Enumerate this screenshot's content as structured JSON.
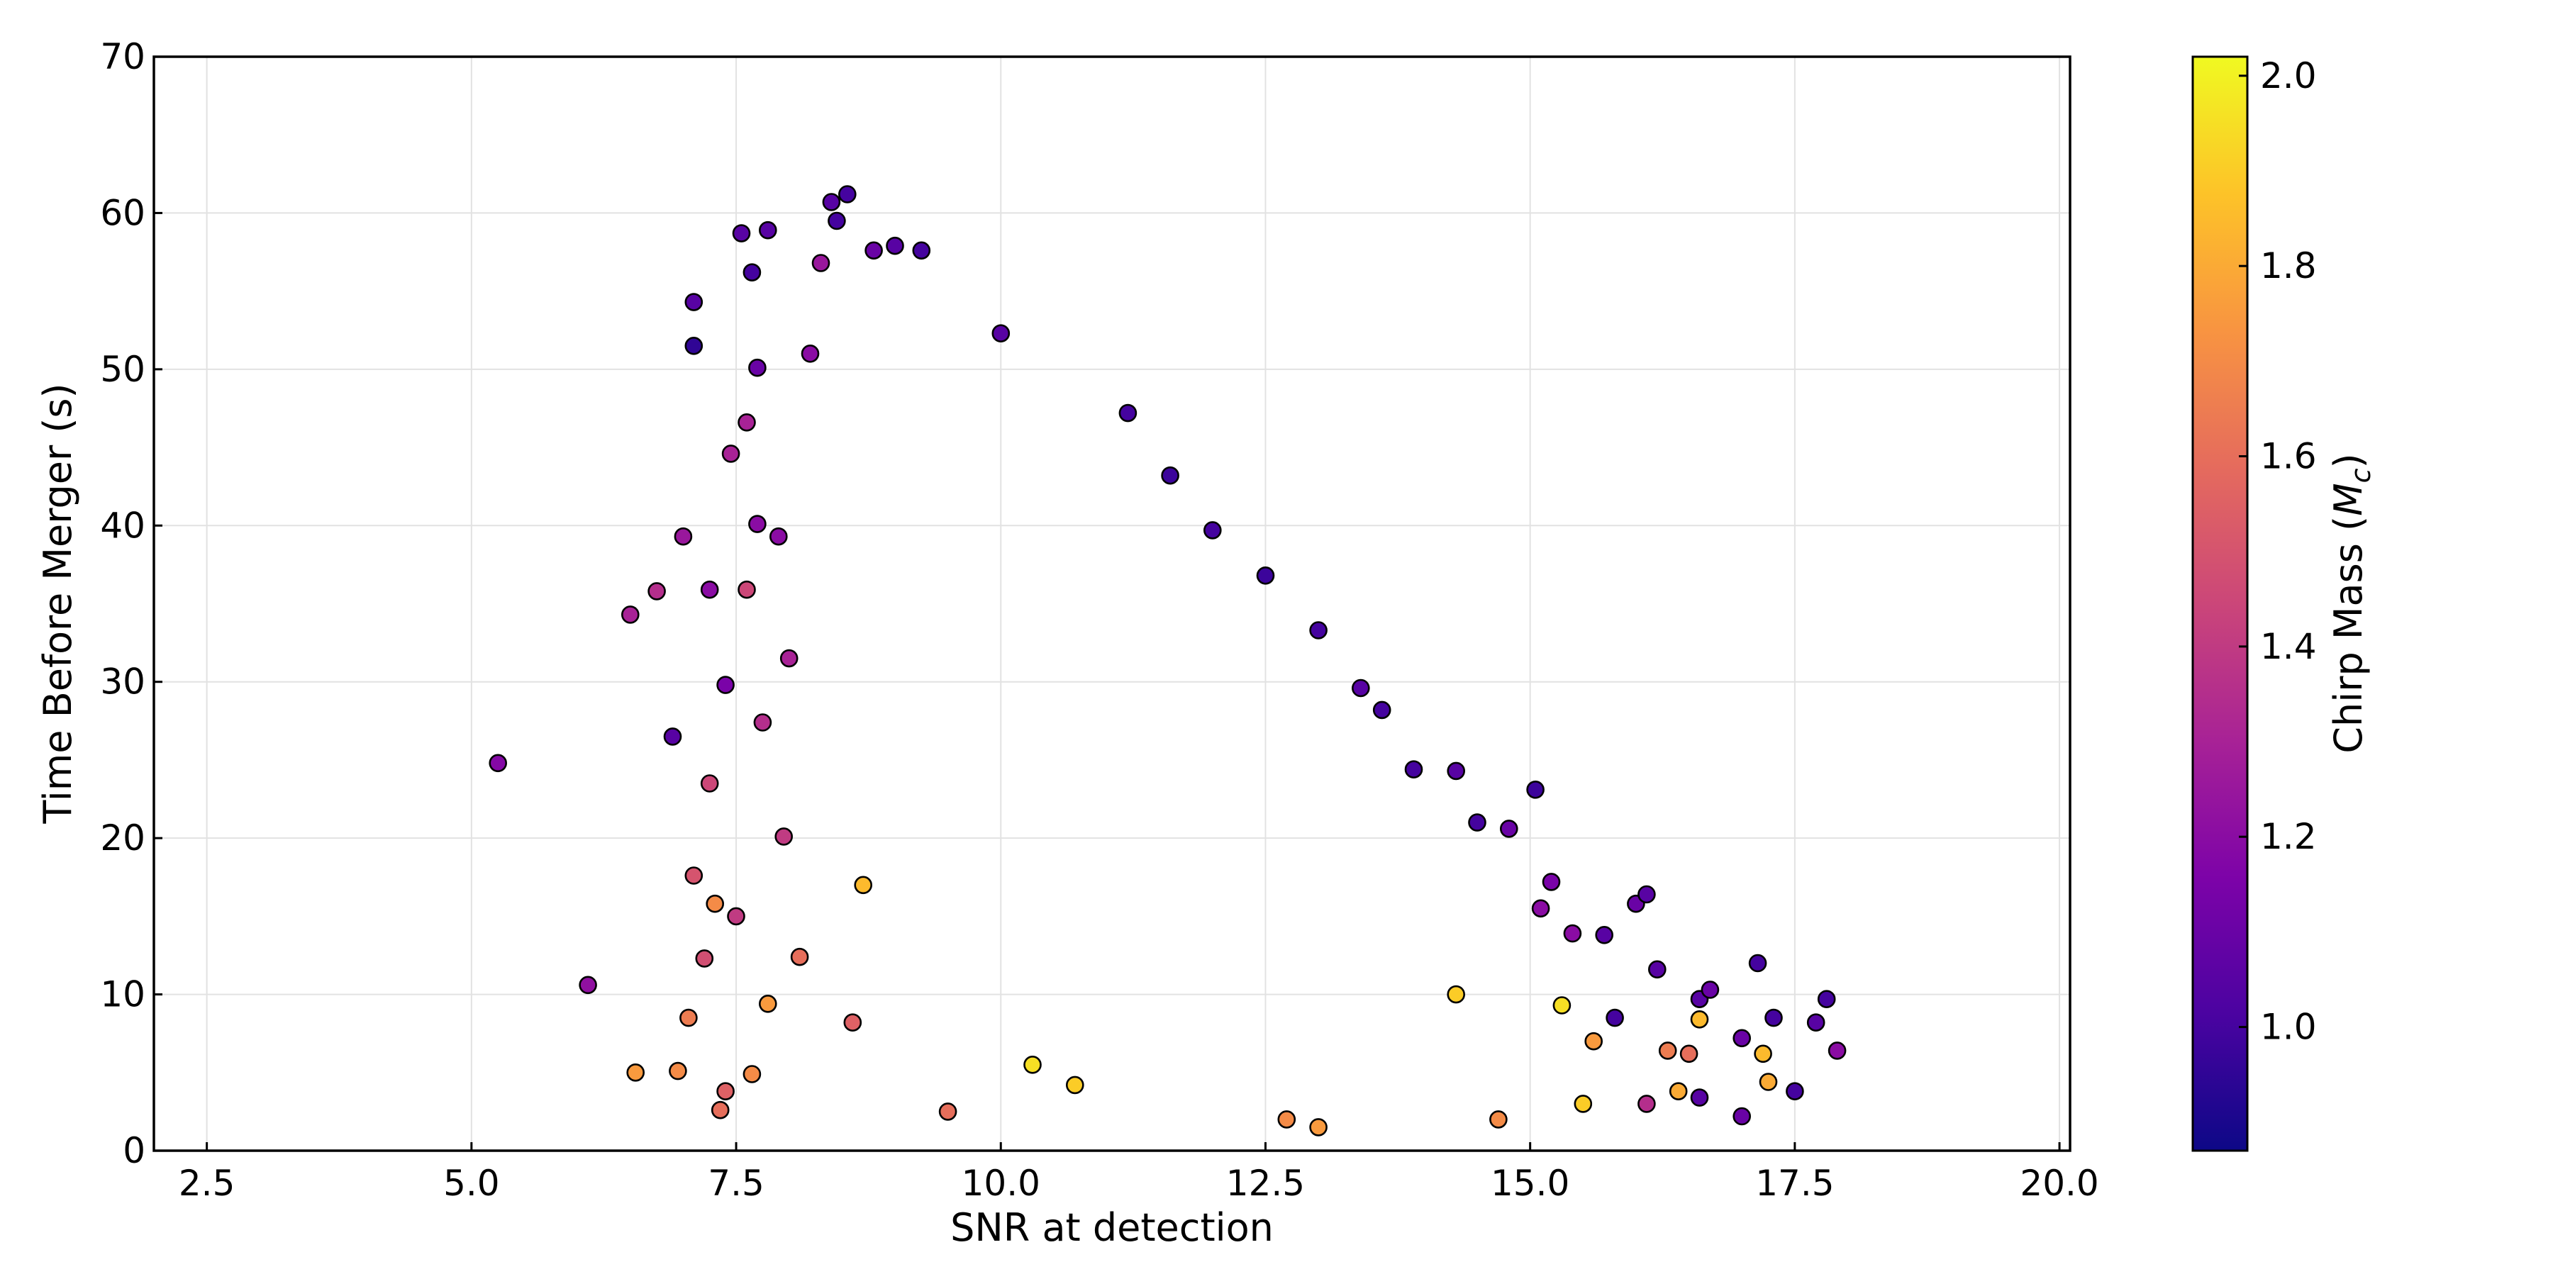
{
  "chart_data": {
    "type": "scatter",
    "title": "",
    "xlabel": "SNR at detection",
    "ylabel": "Time Before Merger (s)",
    "xlim": [
      2.0,
      20.1
    ],
    "ylim": [
      0,
      70
    ],
    "xticks": [
      2.5,
      5.0,
      7.5,
      10.0,
      12.5,
      15.0,
      17.5,
      20.0
    ],
    "xtick_labels": [
      "2.5",
      "5.0",
      "7.5",
      "10.0",
      "12.5",
      "15.0",
      "17.5",
      "20.0"
    ],
    "yticks": [
      0,
      10,
      20,
      30,
      40,
      50,
      60,
      70
    ],
    "ytick_labels": [
      "0",
      "10",
      "20",
      "30",
      "40",
      "50",
      "60",
      "70"
    ],
    "grid": true,
    "colorbar": {
      "label_prefix": "Chirp Mass (",
      "label_symbol": "M",
      "label_subscript": "c",
      "label_suffix": ")",
      "colormap": "plasma",
      "range": [
        0.87,
        2.02
      ],
      "ticks": [
        1.0,
        1.2,
        1.4,
        1.6,
        1.8,
        2.0
      ],
      "tick_labels": [
        "1.0",
        "1.2",
        "1.4",
        "1.6",
        "1.8",
        "2.0"
      ]
    },
    "series": [
      {
        "marker": "circle",
        "edgecolor": "#000000",
        "points": [
          [
            5.25,
            24.8,
            1.18
          ],
          [
            6.1,
            10.6,
            1.22
          ],
          [
            6.5,
            34.3,
            1.3
          ],
          [
            6.55,
            5.0,
            1.75
          ],
          [
            6.75,
            35.8,
            1.35
          ],
          [
            6.9,
            26.5,
            1.05
          ],
          [
            6.95,
            5.1,
            1.7
          ],
          [
            7.0,
            39.3,
            1.25
          ],
          [
            7.05,
            8.5,
            1.65
          ],
          [
            7.1,
            54.3,
            1.05
          ],
          [
            7.1,
            51.5,
            0.95
          ],
          [
            7.1,
            17.6,
            1.5
          ],
          [
            7.2,
            12.3,
            1.48
          ],
          [
            7.25,
            23.5,
            1.45
          ],
          [
            7.25,
            35.9,
            1.2
          ],
          [
            7.3,
            15.8,
            1.7
          ],
          [
            7.35,
            2.6,
            1.6
          ],
          [
            7.4,
            29.8,
            1.15
          ],
          [
            7.4,
            3.8,
            1.55
          ],
          [
            7.45,
            44.6,
            1.3
          ],
          [
            7.5,
            15.0,
            1.4
          ],
          [
            7.55,
            58.7,
            1.05
          ],
          [
            7.6,
            46.6,
            1.3
          ],
          [
            7.6,
            35.9,
            1.45
          ],
          [
            7.65,
            56.2,
            1.0
          ],
          [
            7.65,
            4.9,
            1.7
          ],
          [
            7.7,
            50.1,
            1.1
          ],
          [
            7.7,
            40.1,
            1.2
          ],
          [
            7.75,
            27.4,
            1.35
          ],
          [
            7.8,
            58.9,
            1.05
          ],
          [
            7.8,
            9.4,
            1.75
          ],
          [
            7.9,
            39.3,
            1.2
          ],
          [
            7.95,
            20.1,
            1.4
          ],
          [
            8.0,
            31.5,
            1.3
          ],
          [
            8.1,
            12.4,
            1.6
          ],
          [
            8.2,
            51.0,
            1.2
          ],
          [
            8.3,
            56.8,
            1.25
          ],
          [
            8.4,
            60.7,
            1.05
          ],
          [
            8.45,
            59.5,
            1.0
          ],
          [
            8.55,
            61.2,
            1.0
          ],
          [
            8.6,
            8.2,
            1.55
          ],
          [
            8.7,
            17.0,
            1.85
          ],
          [
            8.8,
            57.6,
            1.1
          ],
          [
            9.0,
            57.9,
            1.05
          ],
          [
            9.25,
            57.6,
            1.0
          ],
          [
            9.5,
            2.5,
            1.6
          ],
          [
            10.0,
            52.3,
            1.05
          ],
          [
            10.3,
            5.5,
            1.95
          ],
          [
            10.7,
            4.2,
            1.9
          ],
          [
            11.2,
            47.2,
            1.0
          ],
          [
            11.6,
            43.2,
            0.98
          ],
          [
            12.0,
            39.7,
            1.0
          ],
          [
            12.5,
            36.8,
            0.98
          ],
          [
            12.7,
            2.0,
            1.7
          ],
          [
            13.0,
            33.3,
            1.0
          ],
          [
            13.0,
            1.5,
            1.75
          ],
          [
            13.4,
            29.6,
            1.05
          ],
          [
            13.6,
            28.2,
            1.0
          ],
          [
            13.9,
            24.4,
            1.0
          ],
          [
            14.3,
            24.3,
            1.05
          ],
          [
            14.3,
            10.0,
            1.9
          ],
          [
            14.5,
            21.0,
            1.0
          ],
          [
            14.7,
            2.0,
            1.7
          ],
          [
            14.8,
            20.6,
            1.1
          ],
          [
            15.05,
            23.1,
            0.98
          ],
          [
            15.1,
            15.5,
            1.2
          ],
          [
            15.2,
            17.2,
            1.15
          ],
          [
            15.3,
            9.3,
            1.95
          ],
          [
            15.4,
            13.9,
            1.2
          ],
          [
            15.5,
            3.0,
            1.9
          ],
          [
            15.6,
            7.0,
            1.75
          ],
          [
            15.7,
            13.8,
            1.05
          ],
          [
            15.8,
            8.5,
            1.0
          ],
          [
            16.0,
            15.8,
            1.1
          ],
          [
            16.1,
            16.4,
            1.05
          ],
          [
            16.1,
            3.0,
            1.35
          ],
          [
            16.2,
            11.6,
            1.05
          ],
          [
            16.3,
            6.4,
            1.65
          ],
          [
            16.4,
            3.8,
            1.8
          ],
          [
            16.5,
            6.2,
            1.6
          ],
          [
            16.6,
            9.7,
            1.05
          ],
          [
            16.6,
            3.4,
            1.05
          ],
          [
            16.7,
            10.3,
            1.1
          ],
          [
            16.6,
            8.4,
            1.85
          ],
          [
            17.0,
            2.2,
            1.1
          ],
          [
            17.0,
            7.2,
            1.1
          ],
          [
            17.15,
            12.0,
            1.0
          ],
          [
            17.2,
            6.2,
            1.85
          ],
          [
            17.3,
            8.5,
            1.0
          ],
          [
            17.25,
            4.4,
            1.8
          ],
          [
            17.5,
            3.8,
            1.0
          ],
          [
            17.7,
            8.2,
            1.05
          ],
          [
            17.8,
            9.7,
            1.0
          ],
          [
            17.9,
            6.4,
            1.2
          ]
        ]
      }
    ]
  }
}
